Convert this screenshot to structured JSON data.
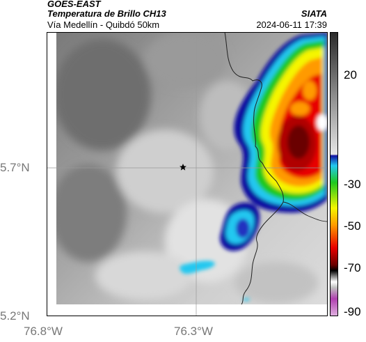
{
  "header": {
    "satellite": "GOES-EAST",
    "product": "Temperatura de Brillo CH13",
    "region": "Vía Medellín - Quibdó 50km",
    "organization": "SIATA",
    "datetime": "2024-06-11 17:39"
  },
  "map": {
    "lon_ticks": [
      "76.8°W",
      "76.3°W"
    ],
    "lat_ticks": [
      "5.7°N",
      "5.2°N"
    ],
    "marker_icon": "star-icon"
  },
  "colorbar": {
    "labels": [
      "20",
      "-30",
      "-50",
      "-70",
      "-90"
    ],
    "colors": {
      "gray_low": "#2a2a2a",
      "gray_high": "#e6e6e6",
      "blue": "#1010a0",
      "cyan": "#22c8f0",
      "green": "#1ec81e",
      "yellow": "#f5f500",
      "orange": "#ff9a00",
      "red": "#e80000",
      "darkred": "#6a0000",
      "magenta": "#b040b0"
    }
  }
}
